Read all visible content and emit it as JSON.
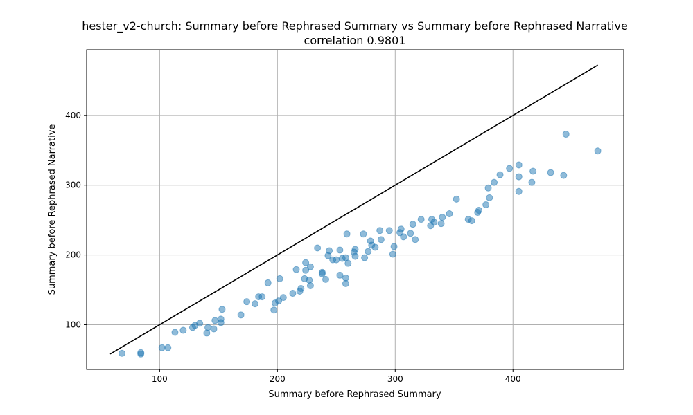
{
  "chart_data": {
    "type": "scatter",
    "title": "hester_v2-church: Summary before Rephrased Summary vs Summary before Rephrased Narrative",
    "subtitle": "correlation 0.9801",
    "xlabel": "Summary before Rephrased Summary",
    "ylabel": "Summary before Rephrased Narrative",
    "xlim": [
      38,
      494
    ],
    "ylim": [
      36,
      494
    ],
    "xticks": [
      100,
      200,
      300,
      400
    ],
    "yticks": [
      100,
      200,
      300,
      400
    ],
    "grid": true,
    "colors": {
      "points": "#1f77b4",
      "reference_line": "#000000",
      "grid": "#b0b0b0"
    },
    "reference_line": {
      "x": [
        58,
        472
      ],
      "y": [
        58,
        472
      ]
    },
    "series": [
      {
        "points": [
          [
            68,
            59
          ],
          [
            84,
            60
          ],
          [
            84,
            58
          ],
          [
            102,
            67
          ],
          [
            107,
            67
          ],
          [
            113,
            89
          ],
          [
            120,
            92
          ],
          [
            128,
            96
          ],
          [
            130,
            99
          ],
          [
            134,
            102
          ],
          [
            140,
            88
          ],
          [
            141,
            96
          ],
          [
            146,
            94
          ],
          [
            147,
            106
          ],
          [
            152,
            103
          ],
          [
            152,
            108
          ],
          [
            153,
            122
          ],
          [
            169,
            114
          ],
          [
            174,
            133
          ],
          [
            181,
            130
          ],
          [
            184,
            140
          ],
          [
            187,
            140
          ],
          [
            192,
            160
          ],
          [
            197,
            121
          ],
          [
            198,
            131
          ],
          [
            201,
            134
          ],
          [
            202,
            166
          ],
          [
            205,
            139
          ],
          [
            213,
            145
          ],
          [
            216,
            179
          ],
          [
            219,
            148
          ],
          [
            220,
            152
          ],
          [
            223,
            166
          ],
          [
            224,
            189
          ],
          [
            224,
            178
          ],
          [
            227,
            164
          ],
          [
            228,
            156
          ],
          [
            228,
            183
          ],
          [
            234,
            210
          ],
          [
            238,
            175
          ],
          [
            238,
            173
          ],
          [
            241,
            165
          ],
          [
            243,
            199
          ],
          [
            244,
            206
          ],
          [
            247,
            193
          ],
          [
            250,
            193
          ],
          [
            253,
            171
          ],
          [
            253,
            207
          ],
          [
            255,
            195
          ],
          [
            258,
            196
          ],
          [
            258,
            167
          ],
          [
            258,
            159
          ],
          [
            259,
            230
          ],
          [
            260,
            188
          ],
          [
            265,
            204
          ],
          [
            266,
            208
          ],
          [
            266,
            198
          ],
          [
            273,
            230
          ],
          [
            274,
            196
          ],
          [
            277,
            205
          ],
          [
            279,
            220
          ],
          [
            280,
            214
          ],
          [
            283,
            211
          ],
          [
            287,
            235
          ],
          [
            288,
            222
          ],
          [
            295,
            235
          ],
          [
            298,
            201
          ],
          [
            299,
            212
          ],
          [
            304,
            232
          ],
          [
            305,
            237
          ],
          [
            307,
            226
          ],
          [
            313,
            231
          ],
          [
            315,
            244
          ],
          [
            317,
            222
          ],
          [
            322,
            251
          ],
          [
            330,
            242
          ],
          [
            331,
            251
          ],
          [
            333,
            247
          ],
          [
            339,
            245
          ],
          [
            340,
            254
          ],
          [
            346,
            259
          ],
          [
            352,
            280
          ],
          [
            362,
            251
          ],
          [
            365,
            249
          ],
          [
            370,
            261
          ],
          [
            371,
            264
          ],
          [
            377,
            272
          ],
          [
            379,
            296
          ],
          [
            380,
            282
          ],
          [
            384,
            304
          ],
          [
            389,
            315
          ],
          [
            397,
            324
          ],
          [
            405,
            329
          ],
          [
            405,
            312
          ],
          [
            405,
            291
          ],
          [
            417,
            320
          ],
          [
            416,
            304
          ],
          [
            432,
            318
          ],
          [
            443,
            314
          ],
          [
            445,
            373
          ],
          [
            472,
            349
          ]
        ]
      }
    ]
  }
}
